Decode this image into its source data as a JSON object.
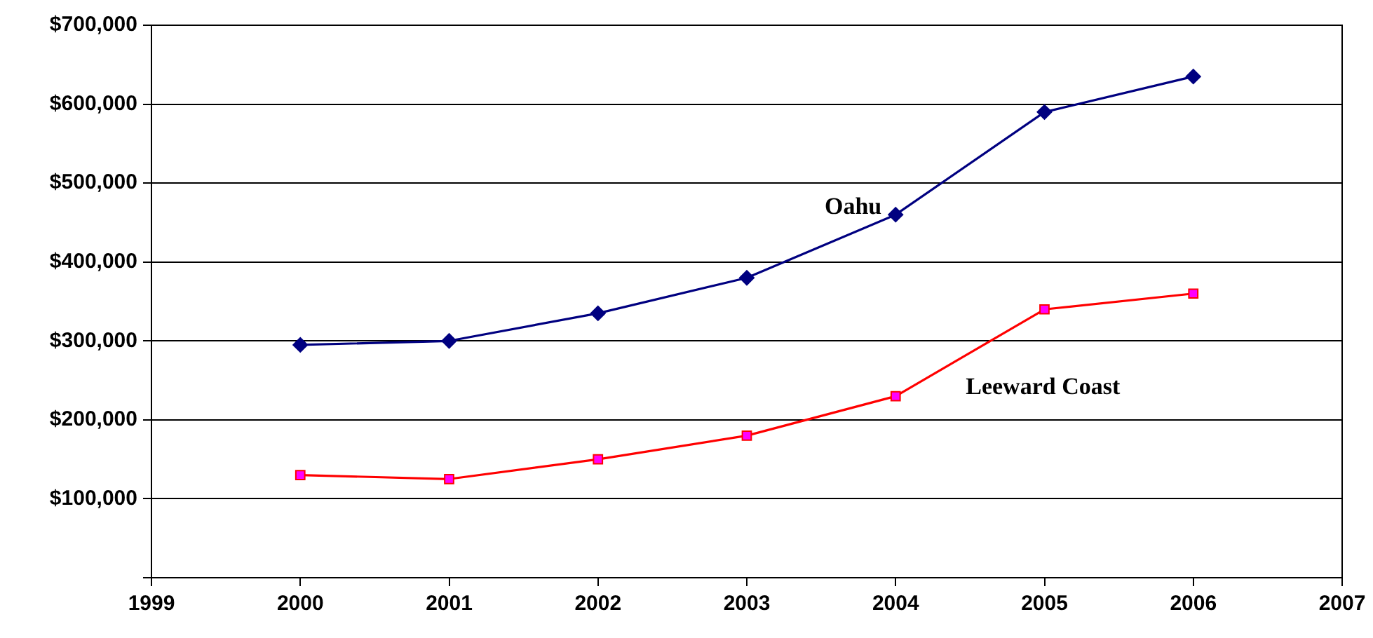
{
  "chart_data": {
    "type": "line",
    "x": [
      2000,
      2001,
      2002,
      2003,
      2004,
      2005,
      2006
    ],
    "series": [
      {
        "name": "Oahu",
        "color": "#000080",
        "marker": "diamond",
        "values": [
          295000,
          300000,
          335000,
          380000,
          460000,
          590000,
          635000
        ]
      },
      {
        "name": "Leeward Coast",
        "color": "#ff0000",
        "marker": "square",
        "values": [
          130000,
          125000,
          150000,
          180000,
          230000,
          340000,
          360000
        ]
      }
    ],
    "xlim": [
      1999,
      2007
    ],
    "xticks": [
      1999,
      2000,
      2001,
      2002,
      2003,
      2004,
      2005,
      2006,
      2007
    ],
    "ylim": [
      0,
      700000
    ],
    "yticks": [
      {
        "value": 0,
        "label": null
      },
      {
        "value": 100000,
        "label": "$100,000"
      },
      {
        "value": 200000,
        "label": "$200,000"
      },
      {
        "value": 300000,
        "label": "$300,000"
      },
      {
        "value": 400000,
        "label": "$400,000"
      },
      {
        "value": 500000,
        "label": "$500,000"
      },
      {
        "value": 600000,
        "label": "$600,000"
      },
      {
        "value": 700000,
        "label": "$700,000"
      }
    ],
    "grid": "y",
    "legend": false,
    "line_style": "solid"
  }
}
